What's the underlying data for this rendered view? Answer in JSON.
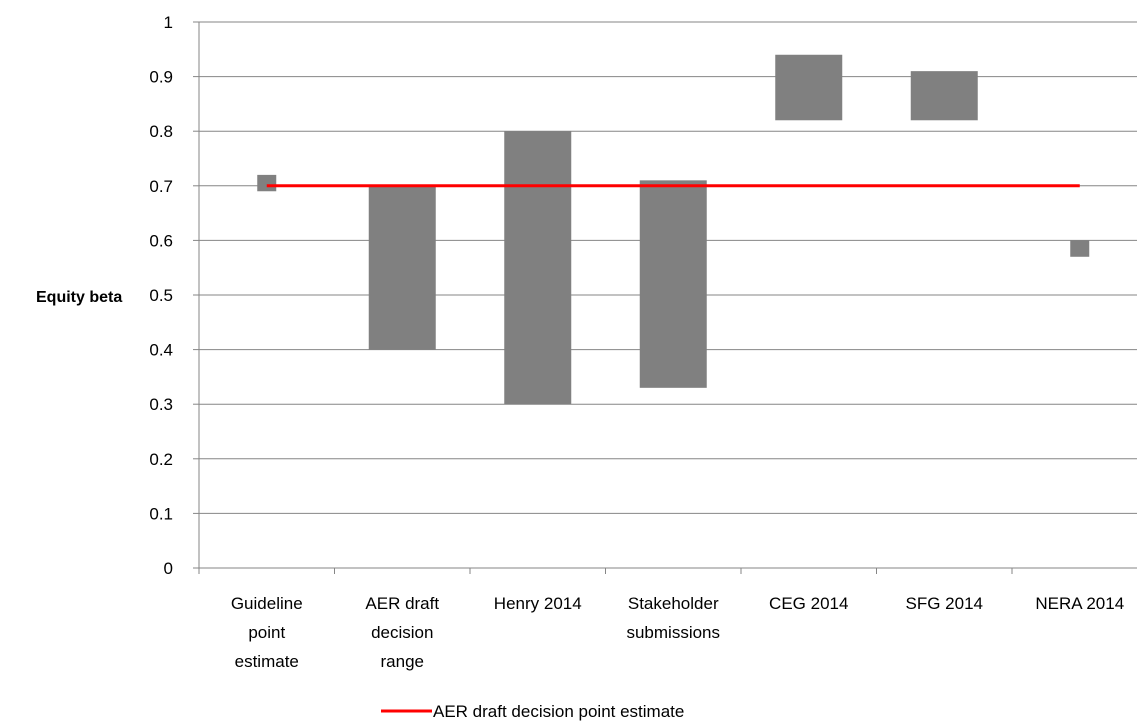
{
  "chart_data": {
    "type": "floating-bar",
    "ylabel": "Equity beta",
    "ylim": [
      0,
      1
    ],
    "yticks": [
      "0",
      "0.1",
      "0.2",
      "0.3",
      "0.4",
      "0.5",
      "0.6",
      "0.7",
      "0.8",
      "0.9",
      "1"
    ],
    "grid": true,
    "categories": [
      [
        "Guideline",
        "point",
        "estimate"
      ],
      [
        "AER draft",
        "decision",
        "range"
      ],
      [
        "Henry 2014"
      ],
      [
        "Stakeholder",
        "submissions"
      ],
      [
        "CEG 2014"
      ],
      [
        "SFG 2014"
      ],
      [
        "NERA 2014"
      ]
    ],
    "series": [
      {
        "kind": "range",
        "color": "#808080",
        "ranges": [
          [
            0.69,
            0.72
          ],
          [
            0.4,
            0.7
          ],
          [
            0.3,
            0.8
          ],
          [
            0.33,
            0.71
          ],
          [
            0.82,
            0.94
          ],
          [
            0.82,
            0.91
          ],
          [
            0.57,
            0.6
          ]
        ],
        "narrow": [
          true,
          false,
          false,
          false,
          false,
          false,
          true
        ]
      },
      {
        "kind": "line",
        "name": "AER draft decision point estimate",
        "color": "#ff0000",
        "value": 0.7,
        "from_category": 0,
        "to_category": 6
      }
    ],
    "legend": {
      "position": "bottom",
      "entries": [
        "AER draft decision point estimate"
      ]
    }
  }
}
